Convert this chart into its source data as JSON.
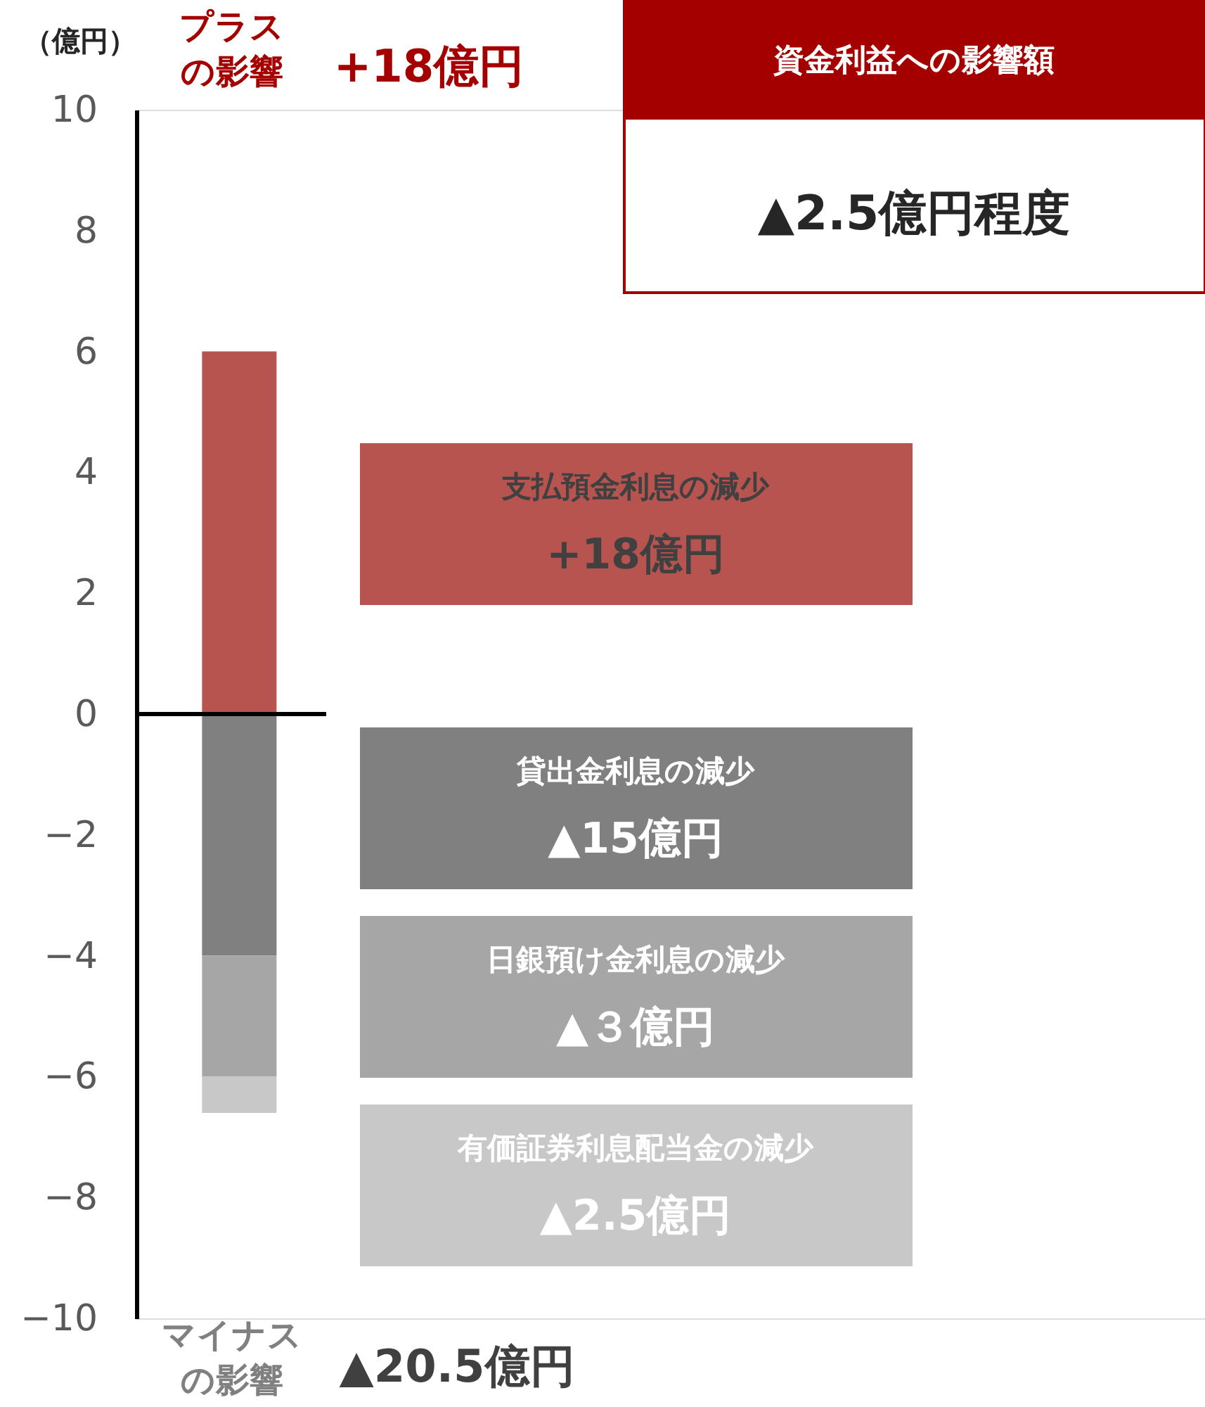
{
  "chart_data": {
    "type": "bar",
    "stacked": true,
    "title": "資金利益への影響額",
    "subtitle": "▲2.5億円程度",
    "ylabel": "（億円）",
    "categories": [
      null
    ],
    "series": [
      {
        "name": "支払預金利息の減少",
        "color": "#b85450",
        "values": [
          6.0
        ]
      },
      {
        "name": "貸出金利息の減少",
        "color": "#808080",
        "values": [
          -4.0
        ]
      },
      {
        "name": "日銀預け金利息の減少",
        "color": "#a6a6a6",
        "values": [
          -2.0
        ]
      },
      {
        "name": "有価証券利息配当金の減少",
        "color": "#c8c8c8",
        "values": [
          -0.6
        ]
      }
    ],
    "annotations": [
      "+18億円",
      "▲15億円",
      "▲３億円",
      "▲2.5億円",
      "プラス",
      "の影響",
      "+18億円",
      "マイナス",
      "の影響",
      "▲20.5億円"
    ],
    "ylim": [
      -10,
      10
    ],
    "yticks": [
      -10,
      -8,
      -6,
      -4,
      -2,
      0,
      2,
      4,
      6,
      8,
      10
    ],
    "ref_lines": [
      {
        "axis": "y",
        "value": 0,
        "color": "#000000"
      }
    ],
    "grid": false
  }
}
